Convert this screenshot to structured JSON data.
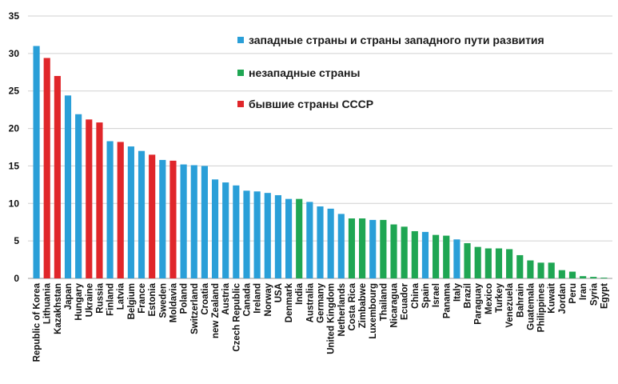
{
  "chart_data": {
    "type": "bar",
    "ylim": [
      0,
      35
    ],
    "yticks": [
      0,
      5,
      10,
      15,
      20,
      25,
      30,
      35
    ],
    "grid": true,
    "legend_position": "top-right",
    "colors": {
      "western": "#2a9fd8",
      "nonwestern": "#1fa653",
      "ussr": "#e0262a",
      "grid": "#d0d0d0",
      "axis": "#9a9a9a"
    },
    "legend": [
      {
        "group": "western",
        "label": "западные страны и страны западного пути развития"
      },
      {
        "group": "nonwestern",
        "label": "незападные страны"
      },
      {
        "group": "ussr",
        "label": "бывшие страны СССР"
      }
    ],
    "bars": [
      {
        "name": "Republic of Korea",
        "value": 31.0,
        "group": "western"
      },
      {
        "name": "Lithuania",
        "value": 29.4,
        "group": "ussr"
      },
      {
        "name": "Kazakhstan",
        "value": 27.0,
        "group": "ussr"
      },
      {
        "name": "Japan",
        "value": 24.4,
        "group": "western"
      },
      {
        "name": "Hungary",
        "value": 21.9,
        "group": "western"
      },
      {
        "name": "Ukraine",
        "value": 21.2,
        "group": "ussr"
      },
      {
        "name": "Russia",
        "value": 20.8,
        "group": "ussr"
      },
      {
        "name": "Finland",
        "value": 18.3,
        "group": "western"
      },
      {
        "name": "Latvia",
        "value": 18.2,
        "group": "ussr"
      },
      {
        "name": "Belgium",
        "value": 17.6,
        "group": "western"
      },
      {
        "name": "France",
        "value": 17.0,
        "group": "western"
      },
      {
        "name": "Estonia",
        "value": 16.5,
        "group": "ussr"
      },
      {
        "name": "Sweden",
        "value": 15.8,
        "group": "western"
      },
      {
        "name": "Moldavia",
        "value": 15.7,
        "group": "ussr"
      },
      {
        "name": "Poland",
        "value": 15.2,
        "group": "western"
      },
      {
        "name": "Switzerland",
        "value": 15.1,
        "group": "western"
      },
      {
        "name": "Croatia",
        "value": 15.0,
        "group": "western"
      },
      {
        "name": "new Zealand",
        "value": 13.2,
        "group": "western"
      },
      {
        "name": "Austria",
        "value": 12.8,
        "group": "western"
      },
      {
        "name": "Czech Republic",
        "value": 12.4,
        "group": "western"
      },
      {
        "name": "Canada",
        "value": 11.7,
        "group": "western"
      },
      {
        "name": "Ireland",
        "value": 11.6,
        "group": "western"
      },
      {
        "name": "Norway",
        "value": 11.4,
        "group": "western"
      },
      {
        "name": "USA",
        "value": 11.1,
        "group": "western"
      },
      {
        "name": "Denmark",
        "value": 10.6,
        "group": "western"
      },
      {
        "name": "India",
        "value": 10.6,
        "group": "nonwestern"
      },
      {
        "name": "Australia",
        "value": 10.2,
        "group": "western"
      },
      {
        "name": "Germany",
        "value": 9.6,
        "group": "western"
      },
      {
        "name": "United Kingdom",
        "value": 9.3,
        "group": "western"
      },
      {
        "name": "Netherlands",
        "value": 8.6,
        "group": "western"
      },
      {
        "name": "Costa Rica",
        "value": 8.0,
        "group": "nonwestern"
      },
      {
        "name": "Zimbabwe",
        "value": 8.0,
        "group": "nonwestern"
      },
      {
        "name": "Luxembourg",
        "value": 7.8,
        "group": "western"
      },
      {
        "name": "Thailand",
        "value": 7.8,
        "group": "nonwestern"
      },
      {
        "name": "Nicaragua",
        "value": 7.2,
        "group": "nonwestern"
      },
      {
        "name": "Ecuador",
        "value": 6.9,
        "group": "nonwestern"
      },
      {
        "name": "China",
        "value": 6.3,
        "group": "nonwestern"
      },
      {
        "name": "Spain",
        "value": 6.2,
        "group": "western"
      },
      {
        "name": "Israel",
        "value": 5.8,
        "group": "nonwestern"
      },
      {
        "name": "Panama",
        "value": 5.7,
        "group": "nonwestern"
      },
      {
        "name": "Italy",
        "value": 5.2,
        "group": "western"
      },
      {
        "name": "Brazil",
        "value": 4.7,
        "group": "nonwestern"
      },
      {
        "name": "Paraguay",
        "value": 4.2,
        "group": "nonwestern"
      },
      {
        "name": "Mexico",
        "value": 4.0,
        "group": "nonwestern"
      },
      {
        "name": "Turkey",
        "value": 4.0,
        "group": "nonwestern"
      },
      {
        "name": "Venezuela",
        "value": 3.9,
        "group": "nonwestern"
      },
      {
        "name": "Bahrain",
        "value": 3.1,
        "group": "nonwestern"
      },
      {
        "name": "Guatemala",
        "value": 2.4,
        "group": "nonwestern"
      },
      {
        "name": "Philippines",
        "value": 2.1,
        "group": "nonwestern"
      },
      {
        "name": "Kuwait",
        "value": 2.1,
        "group": "nonwestern"
      },
      {
        "name": "Jordan",
        "value": 1.1,
        "group": "nonwestern"
      },
      {
        "name": "Peru",
        "value": 0.9,
        "group": "nonwestern"
      },
      {
        "name": "Iran",
        "value": 0.3,
        "group": "nonwestern"
      },
      {
        "name": "Syria",
        "value": 0.2,
        "group": "nonwestern"
      },
      {
        "name": "Egypt",
        "value": 0.1,
        "group": "nonwestern"
      }
    ]
  }
}
